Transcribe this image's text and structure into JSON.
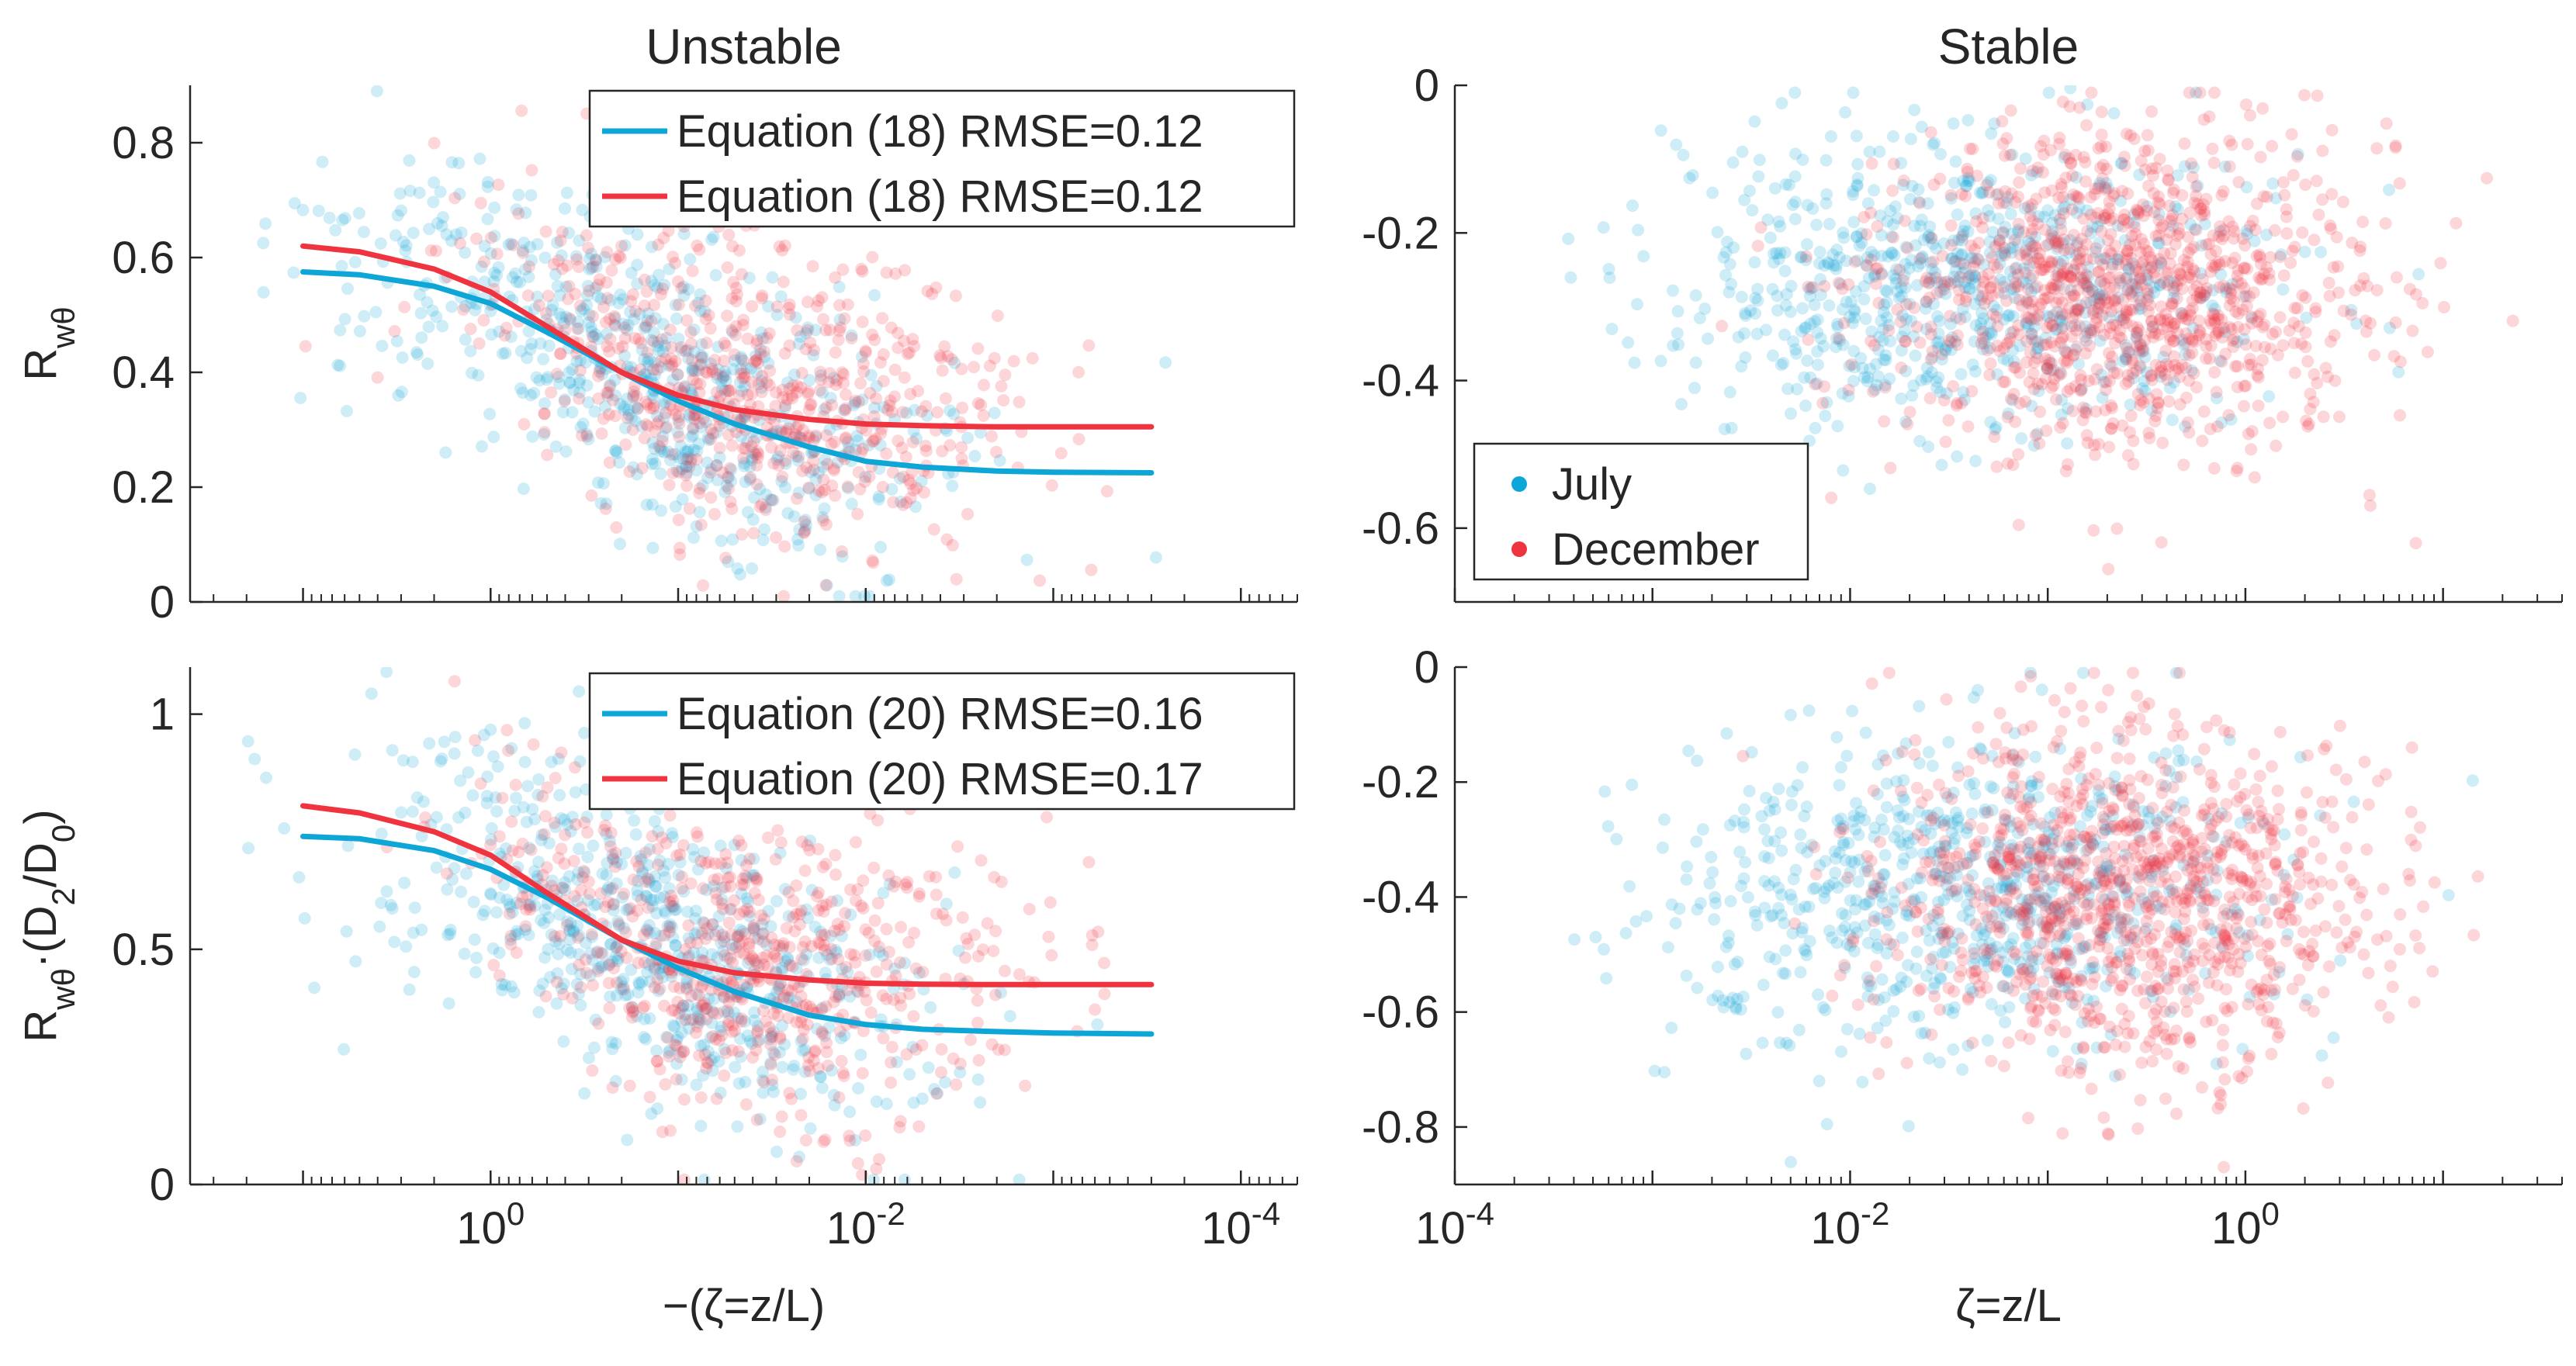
{
  "colors": {
    "july": "#0ea5d7",
    "december": "#f0343f",
    "axis": "#262626"
  },
  "chart_data": [
    {
      "type": "scatter",
      "panel": "top-left",
      "title": "Unstable",
      "ylabel": "R_wθ",
      "xlabel": "",
      "xscale": "log",
      "x_reversed": true,
      "xlim": [
        5e-05,
        40
      ],
      "ylim": [
        0,
        0.9
      ],
      "xticks": [
        1,
        0.01,
        0.0001
      ],
      "xtick_labels": [
        "",
        "",
        ""
      ],
      "yticks": [
        0,
        0.2,
        0.4,
        0.6,
        0.8
      ],
      "ytick_labels": [
        "0",
        "0.2",
        "0.4",
        "0.6",
        "0.8"
      ],
      "legend": {
        "position": "top-right",
        "entries": [
          {
            "label": "Equation (18) RMSE=0.12",
            "color": "#0ea5d7",
            "marker": "line"
          },
          {
            "label": "Equation (18) RMSE=0.12",
            "color": "#f0343f",
            "marker": "line"
          }
        ]
      },
      "series": [
        {
          "name": "Equation (18) RMSE=0.12",
          "kind": "line",
          "color": "#0ea5d7",
          "x": [
            10,
            5,
            2,
            1,
            0.5,
            0.2,
            0.1,
            0.05,
            0.02,
            0.01,
            0.005,
            0.002,
            0.001,
            0.0003
          ],
          "y": [
            0.575,
            0.57,
            0.55,
            0.52,
            0.47,
            0.4,
            0.35,
            0.31,
            0.27,
            0.245,
            0.235,
            0.228,
            0.226,
            0.225
          ]
        },
        {
          "name": "Equation (18) RMSE=0.12",
          "kind": "line",
          "color": "#f0343f",
          "x": [
            10,
            5,
            2,
            1,
            0.5,
            0.2,
            0.1,
            0.05,
            0.02,
            0.01,
            0.005,
            0.002,
            0.001,
            0.0003
          ],
          "y": [
            0.62,
            0.61,
            0.58,
            0.54,
            0.48,
            0.4,
            0.36,
            0.335,
            0.318,
            0.31,
            0.307,
            0.305,
            0.305,
            0.305
          ]
        },
        {
          "name": "July",
          "kind": "scatter",
          "color": "#0ea5d7",
          "xrange": [
            0.0002,
            20
          ],
          "xcenter": 0.15,
          "xspread": 0.8,
          "model": "rwt18b",
          "yspread": 0.12,
          "n": 650,
          "seed": 11
        },
        {
          "name": "December",
          "kind": "scatter",
          "color": "#f0343f",
          "xrange": [
            0.0005,
            15
          ],
          "xcenter": 0.04,
          "xspread": 0.7,
          "model": "rwt18r",
          "yspread": 0.12,
          "n": 650,
          "seed": 23
        }
      ]
    },
    {
      "type": "scatter",
      "panel": "top-right",
      "title": "Stable",
      "ylabel": "",
      "xlabel": "",
      "xscale": "log",
      "x_reversed": false,
      "xlim": [
        0.0001,
        40
      ],
      "ylim": [
        -0.7,
        0
      ],
      "xticks": [
        0.0001,
        0.01,
        1
      ],
      "xtick_labels": [
        "",
        "",
        ""
      ],
      "yticks": [
        -0.6,
        -0.4,
        -0.2,
        0
      ],
      "ytick_labels": [
        "-0.6",
        "-0.4",
        "-0.2",
        "0"
      ],
      "legend": {
        "position": "bottom-left",
        "entries": [
          {
            "label": "July",
            "color": "#0ea5d7",
            "marker": "dot"
          },
          {
            "label": "December",
            "color": "#f0343f",
            "marker": "dot"
          }
        ]
      },
      "series": [
        {
          "name": "July",
          "kind": "scatter",
          "color": "#0ea5d7",
          "xrange": [
            0.0003,
            15
          ],
          "xcenter": 0.04,
          "xspread": 0.75,
          "ycenter": -0.27,
          "yspread": 0.1,
          "n": 750,
          "seed": 37
        },
        {
          "name": "December",
          "kind": "scatter",
          "color": "#f0343f",
          "xrange": [
            0.0005,
            25
          ],
          "xcenter": 0.25,
          "xspread": 0.6,
          "ycenter": -0.28,
          "yspread": 0.11,
          "n": 1100,
          "seed": 53
        }
      ]
    },
    {
      "type": "scatter",
      "panel": "bottom-left",
      "title": "",
      "ylabel": "R_wθ·(D_2/D_0)",
      "xlabel": "−(ζ=z/L)",
      "xscale": "log",
      "x_reversed": true,
      "xlim": [
        5e-05,
        40
      ],
      "ylim": [
        0,
        1.1
      ],
      "xticks": [
        1,
        0.01,
        0.0001
      ],
      "xtick_labels": [
        "10^0",
        "10^-2",
        "10^-4"
      ],
      "yticks": [
        0,
        0.5,
        1
      ],
      "ytick_labels": [
        "0",
        "0.5",
        "1"
      ],
      "legend": {
        "position": "top-right",
        "entries": [
          {
            "label": "Equation (20) RMSE=0.16",
            "color": "#0ea5d7",
            "marker": "line"
          },
          {
            "label": "Equation (20) RMSE=0.17",
            "color": "#f0343f",
            "marker": "line"
          }
        ]
      },
      "series": [
        {
          "name": "Equation (20) RMSE=0.16",
          "kind": "line",
          "color": "#0ea5d7",
          "x": [
            10,
            5,
            2,
            1,
            0.5,
            0.2,
            0.1,
            0.05,
            0.02,
            0.01,
            0.005,
            0.002,
            0.001,
            0.0003
          ],
          "y": [
            0.74,
            0.735,
            0.71,
            0.67,
            0.61,
            0.52,
            0.46,
            0.41,
            0.36,
            0.34,
            0.33,
            0.325,
            0.322,
            0.32
          ]
        },
        {
          "name": "Equation (20) RMSE=0.17",
          "kind": "line",
          "color": "#f0343f",
          "x": [
            10,
            5,
            2,
            1,
            0.5,
            0.2,
            0.1,
            0.05,
            0.02,
            0.01,
            0.005,
            0.002,
            0.001,
            0.0003
          ],
          "y": [
            0.805,
            0.79,
            0.75,
            0.7,
            0.62,
            0.52,
            0.475,
            0.45,
            0.435,
            0.428,
            0.426,
            0.425,
            0.425,
            0.425
          ]
        },
        {
          "name": "July",
          "kind": "scatter",
          "color": "#0ea5d7",
          "xrange": [
            0.0002,
            20
          ],
          "xcenter": 0.15,
          "xspread": 0.8,
          "model": "rwt20b",
          "yspread": 0.16,
          "n": 650,
          "seed": 71
        },
        {
          "name": "December",
          "kind": "scatter",
          "color": "#f0343f",
          "xrange": [
            0.0005,
            15
          ],
          "xcenter": 0.04,
          "xspread": 0.7,
          "model": "rwt20r",
          "yspread": 0.16,
          "n": 650,
          "seed": 89
        }
      ]
    },
    {
      "type": "scatter",
      "panel": "bottom-right",
      "title": "",
      "ylabel": "",
      "xlabel": "ζ=z/L",
      "xscale": "log",
      "x_reversed": false,
      "xlim": [
        0.0001,
        40
      ],
      "ylim": [
        -0.9,
        0
      ],
      "xticks": [
        0.0001,
        0.01,
        1
      ],
      "xtick_labels": [
        "10^-4",
        "10^-2",
        "10^0"
      ],
      "yticks": [
        -0.8,
        -0.6,
        -0.4,
        -0.2,
        0
      ],
      "ytick_labels": [
        "-0.8",
        "-0.6",
        "-0.4",
        "-0.2",
        "0"
      ],
      "series": [
        {
          "name": "July",
          "kind": "scatter",
          "color": "#0ea5d7",
          "xrange": [
            0.0003,
            15
          ],
          "xcenter": 0.04,
          "xspread": 0.75,
          "ycenter": -0.39,
          "yspread": 0.14,
          "n": 750,
          "seed": 101
        },
        {
          "name": "December",
          "kind": "scatter",
          "color": "#f0343f",
          "xrange": [
            0.0005,
            25
          ],
          "xcenter": 0.25,
          "xspread": 0.6,
          "ycenter": -0.4,
          "yspread": 0.15,
          "n": 1100,
          "seed": 131
        }
      ]
    }
  ]
}
